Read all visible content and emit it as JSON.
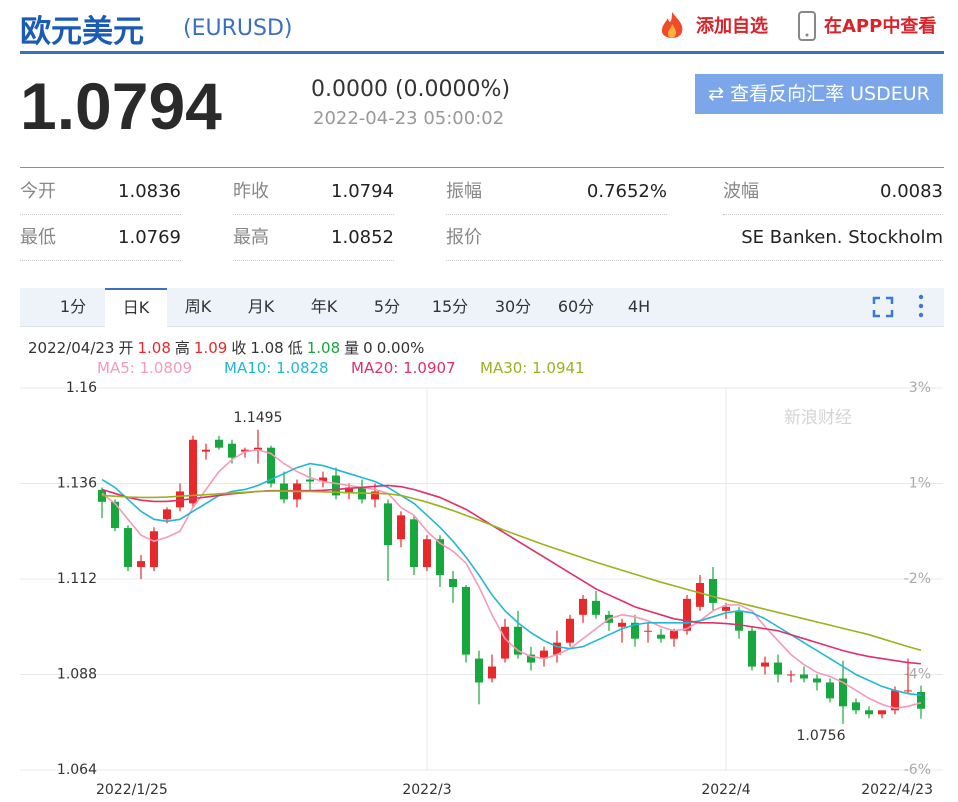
{
  "header": {
    "title": "欧元美元",
    "code": "(EURUSD)",
    "actions": [
      "添加自选",
      "在APP中查看"
    ]
  },
  "quote": {
    "price": "1.0794",
    "change": "0.0000 (0.0000%)",
    "time": "2022-04-23 05:00:02",
    "reverse_button": "查看反向汇率 USDEUR",
    "stats": [
      {
        "label": "今开",
        "value": "1.0836"
      },
      {
        "label": "昨收",
        "value": "1.0794"
      },
      {
        "label": "振幅",
        "value": "0.7652%"
      },
      {
        "label": "波幅",
        "value": "0.0083"
      },
      {
        "label": "最低",
        "value": "1.0769"
      },
      {
        "label": "最高",
        "value": "1.0852"
      },
      {
        "label": "报价",
        "value": "SE Banken. Stockholm"
      }
    ]
  },
  "tabs": [
    {
      "label": "1分"
    },
    {
      "label": "日K",
      "active": true
    },
    {
      "label": "周K"
    },
    {
      "label": "月K"
    },
    {
      "label": "年K"
    },
    {
      "label": "5分"
    },
    {
      "label": "15分"
    },
    {
      "label": "30分"
    },
    {
      "label": "60分"
    },
    {
      "label": "4H"
    }
  ],
  "chart_data": {
    "type": "candlestick",
    "info": [
      {
        "text": "2022/04/23"
      },
      {
        "text": "开"
      },
      {
        "text": "1.08",
        "color": "#e8292b"
      },
      {
        "text": "高"
      },
      {
        "text": "1.09",
        "color": "#e8292b"
      },
      {
        "text": "收"
      },
      {
        "text": "1.08"
      },
      {
        "text": "低"
      },
      {
        "text": "1.08",
        "color": "#16a83c"
      },
      {
        "text": "量"
      },
      {
        "text": "0"
      },
      {
        "text": "0.00%"
      }
    ],
    "watermark": "新浪财经",
    "up_color": "#e8292b",
    "down_color": "#16a83c",
    "ylim": [
      1.064,
      1.16
    ],
    "yticks": [
      1.064,
      1.088,
      1.112,
      1.136,
      1.16
    ],
    "y2tick_labels": [
      "-6%",
      "-4%",
      "-2%",
      "1%",
      "3%"
    ],
    "grid": true,
    "max_label": "1.1495",
    "min_label": "1.0756",
    "categories": [
      "2022/1/25",
      null,
      null,
      null,
      null,
      null,
      null,
      null,
      null,
      null,
      null,
      null,
      null,
      null,
      null,
      null,
      null,
      null,
      null,
      null,
      null,
      null,
      null,
      null,
      null,
      "2022/3",
      null,
      null,
      null,
      null,
      null,
      null,
      null,
      null,
      null,
      null,
      null,
      null,
      null,
      null,
      null,
      null,
      null,
      null,
      null,
      null,
      null,
      null,
      "2022/4",
      null,
      null,
      null,
      null,
      null,
      null,
      null,
      null,
      null,
      null,
      null,
      null,
      null,
      null,
      "2022/4/23"
    ],
    "open": [
      1.1344,
      1.1314,
      1.1248,
      1.115,
      1.115,
      1.127,
      1.13,
      1.131,
      1.144,
      1.147,
      1.146,
      1.144,
      1.1445,
      1.145,
      1.136,
      1.132,
      1.137,
      1.1365,
      1.138,
      1.1335,
      1.135,
      1.132,
      1.131,
      1.122,
      1.127,
      1.115,
      1.122,
      1.112,
      1.11,
      1.092,
      1.087,
      1.092,
      1.1,
      1.093,
      1.092,
      1.093,
      1.096,
      1.103,
      1.1065,
      1.103,
      1.1,
      1.101,
      1.099,
      1.098,
      1.097,
      1.099,
      1.105,
      1.112,
      1.104,
      1.104,
      1.099,
      1.09,
      1.091,
      1.088,
      1.088,
      1.087,
      1.086,
      1.087,
      1.081,
      1.079,
      1.078,
      1.079,
      1.084,
      1.0836
    ],
    "high": [
      1.135,
      1.132,
      1.1255,
      1.118,
      1.125,
      1.13,
      1.136,
      1.148,
      1.146,
      1.148,
      1.147,
      1.145,
      1.1495,
      1.1455,
      1.139,
      1.137,
      1.14,
      1.139,
      1.14,
      1.136,
      1.137,
      1.136,
      1.132,
      1.129,
      1.128,
      1.123,
      1.123,
      1.114,
      1.1105,
      1.094,
      1.093,
      1.102,
      1.104,
      1.095,
      1.095,
      1.099,
      1.103,
      1.108,
      1.109,
      1.104,
      1.102,
      1.103,
      1.101,
      1.0995,
      1.0995,
      1.108,
      1.113,
      1.115,
      1.106,
      1.105,
      1.1,
      1.0925,
      1.093,
      1.089,
      1.09,
      1.088,
      1.087,
      1.0915,
      1.082,
      1.08,
      1.079,
      1.085,
      1.092,
      1.0852
    ],
    "low": [
      1.1273,
      1.124,
      1.114,
      1.112,
      1.114,
      1.126,
      1.129,
      1.13,
      1.142,
      1.1445,
      1.141,
      1.1425,
      1.141,
      1.135,
      1.131,
      1.13,
      1.134,
      1.135,
      1.132,
      1.132,
      1.131,
      1.13,
      1.1115,
      1.12,
      1.113,
      1.114,
      1.11,
      1.106,
      1.091,
      1.0805,
      1.086,
      1.091,
      1.092,
      1.089,
      1.09,
      1.091,
      1.095,
      1.101,
      1.102,
      1.099,
      1.096,
      1.095,
      1.096,
      1.096,
      1.095,
      1.098,
      1.104,
      1.104,
      1.102,
      1.097,
      1.089,
      1.088,
      1.086,
      1.086,
      1.086,
      1.084,
      1.081,
      1.0756,
      1.078,
      1.077,
      1.077,
      1.078,
      1.083,
      1.0769
    ],
    "close": [
      1.1314,
      1.1248,
      1.115,
      1.1165,
      1.124,
      1.1295,
      1.134,
      1.147,
      1.1445,
      1.145,
      1.1425,
      1.1445,
      1.145,
      1.136,
      1.132,
      1.136,
      1.1365,
      1.1375,
      1.133,
      1.135,
      1.132,
      1.134,
      1.1205,
      1.128,
      1.115,
      1.122,
      1.113,
      1.11,
      1.093,
      1.086,
      1.09,
      1.1,
      1.093,
      1.091,
      1.094,
      1.096,
      1.102,
      1.107,
      1.103,
      1.101,
      1.101,
      1.097,
      1.099,
      1.097,
      1.099,
      1.107,
      1.111,
      1.106,
      1.105,
      1.099,
      1.09,
      1.091,
      1.088,
      1.088,
      1.087,
      1.086,
      1.082,
      1.08,
      1.079,
      1.078,
      1.079,
      1.084,
      1.084,
      1.0794
    ],
    "series": [
      {
        "name": "MA5: 1.0809",
        "color": "#f59ab8",
        "values": [
          1.1335,
          1.131,
          1.127,
          1.123,
          1.1215,
          1.1225,
          1.124,
          1.13,
          1.1345,
          1.139,
          1.142,
          1.144,
          1.1445,
          1.1435,
          1.141,
          1.139,
          1.1375,
          1.1365,
          1.136,
          1.1355,
          1.135,
          1.1345,
          1.1335,
          1.13,
          1.128,
          1.124,
          1.121,
          1.119,
          1.116,
          1.11,
          1.103,
          1.097,
          1.094,
          1.0925,
          1.092,
          1.093,
          1.0945,
          1.097,
          1.0995,
          1.102,
          1.103,
          1.1025,
          1.1015,
          1.1,
          1.099,
          1.0995,
          1.1015,
          1.104,
          1.1055,
          1.1055,
          1.104,
          1.1,
          1.0965,
          1.093,
          1.0905,
          1.0885,
          1.0875,
          1.086,
          1.084,
          1.082,
          1.0805,
          1.0795,
          1.08,
          1.0809
        ]
      },
      {
        "name": "MA10: 1.0828",
        "color": "#22b8d4",
        "values": [
          1.137,
          1.135,
          1.132,
          1.129,
          1.127,
          1.1265,
          1.127,
          1.129,
          1.131,
          1.133,
          1.134,
          1.1345,
          1.1355,
          1.137,
          1.1385,
          1.14,
          1.141,
          1.1405,
          1.1395,
          1.1385,
          1.1375,
          1.1365,
          1.135,
          1.133,
          1.131,
          1.128,
          1.125,
          1.1215,
          1.1175,
          1.113,
          1.108,
          1.104,
          1.101,
          1.0985,
          1.0965,
          1.095,
          1.0945,
          1.095,
          1.0965,
          1.098,
          1.0995,
          1.1005,
          1.101,
          1.101,
          1.101,
          1.101,
          1.1015,
          1.1025,
          1.1035,
          1.104,
          1.1035,
          1.102,
          1.1,
          1.098,
          1.096,
          1.094,
          1.092,
          1.09,
          1.088,
          1.0865,
          1.085,
          1.084,
          1.0832,
          1.0828
        ]
      },
      {
        "name": "MA20: 1.0907",
        "color": "#e0306a",
        "values": [
          1.1345,
          1.1335,
          1.1325,
          1.1318,
          1.1315,
          1.1315,
          1.1318,
          1.1322,
          1.1326,
          1.133,
          1.1334,
          1.1337,
          1.134,
          1.1342,
          1.1342,
          1.1342,
          1.1342,
          1.1343,
          1.1345,
          1.1348,
          1.135,
          1.1353,
          1.1355,
          1.1352,
          1.1345,
          1.1335,
          1.1325,
          1.131,
          1.1295,
          1.1275,
          1.1255,
          1.1235,
          1.1215,
          1.1195,
          1.1175,
          1.1155,
          1.1135,
          1.1115,
          1.1095,
          1.108,
          1.1065,
          1.105,
          1.104,
          1.103,
          1.102,
          1.1015,
          1.101,
          1.101,
          1.1008,
          1.1005,
          1.1,
          1.0995,
          1.099,
          1.098,
          1.097,
          1.096,
          1.095,
          1.094,
          1.0932,
          1.0925,
          1.092,
          1.0915,
          1.091,
          1.0907
        ]
      },
      {
        "name": "MA30: 1.0941",
        "color": "#9ab21e",
        "values": [
          1.133,
          1.1328,
          1.1326,
          1.1325,
          1.1325,
          1.1326,
          1.1328,
          1.133,
          1.1332,
          1.1334,
          1.1336,
          1.1338,
          1.134,
          1.1341,
          1.1341,
          1.134,
          1.134,
          1.1339,
          1.1338,
          1.1337,
          1.1336,
          1.1335,
          1.1334,
          1.133,
          1.1322,
          1.1313,
          1.1303,
          1.1292,
          1.128,
          1.1268,
          1.1255,
          1.1242,
          1.123,
          1.1218,
          1.1206,
          1.1195,
          1.1184,
          1.1173,
          1.1162,
          1.1152,
          1.1142,
          1.1132,
          1.1122,
          1.1112,
          1.1103,
          1.1094,
          1.1085,
          1.1076,
          1.1068,
          1.106,
          1.1052,
          1.1044,
          1.1036,
          1.1028,
          1.102,
          1.1012,
          1.1004,
          1.0996,
          1.0988,
          1.098,
          1.097,
          1.096,
          1.095,
          1.0941
        ]
      }
    ]
  }
}
